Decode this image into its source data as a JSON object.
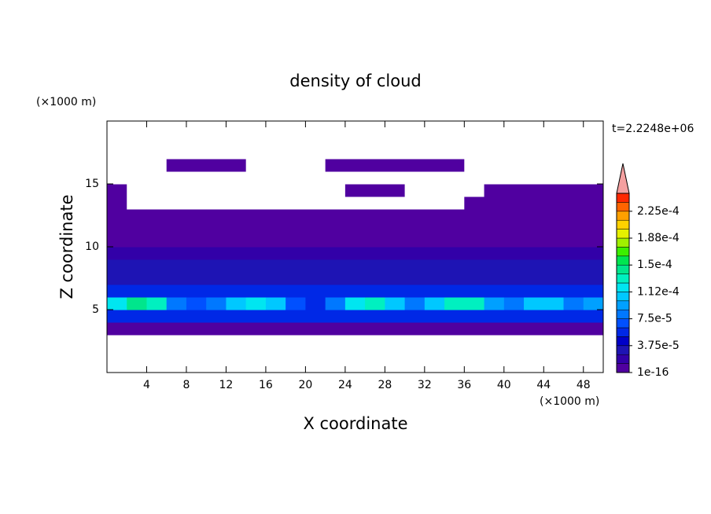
{
  "chart_data": {
    "type": "contour",
    "title": "density of cloud",
    "xlabel": "X coordinate",
    "ylabel": "Z coordinate",
    "x_unit": "(×1000 m)",
    "y_unit": "(×1000 m)",
    "annotation": "t=2.2248e+06",
    "xlim": [
      0,
      50
    ],
    "ylim": [
      0,
      20
    ],
    "xticks": [
      4,
      8,
      12,
      16,
      20,
      24,
      28,
      32,
      36,
      40,
      44,
      48
    ],
    "yticks": [
      5,
      10,
      15
    ],
    "clim": [
      0,
      0.00025
    ],
    "cticks": [
      {
        "value": 1e-16,
        "label": "1e-16"
      },
      {
        "value": 3.75e-05,
        "label": "3.75e-5"
      },
      {
        "value": 7.5e-05,
        "label": "7.5e-5"
      },
      {
        "value": 0.0001125,
        "label": "1.12e-4"
      },
      {
        "value": 0.00015,
        "label": "1.5e-4"
      },
      {
        "value": 0.0001875,
        "label": "1.88e-4"
      },
      {
        "value": 0.000225,
        "label": "2.25e-4"
      }
    ],
    "colors": [
      "#5000a0",
      "#3200a8",
      "#1e14b4",
      "#0000c8",
      "#0028e6",
      "#0050ff",
      "#0078ff",
      "#00a0ff",
      "#00c8ff",
      "#00e6f0",
      "#00f0c0",
      "#00e68c",
      "#00e650",
      "#3cf000",
      "#a0f000",
      "#e6f000",
      "#ffd200",
      "#ffa000",
      "#ff6400",
      "#ff2800"
    ],
    "extend_color": "#f4a0a0",
    "z": [
      [
        0,
        0,
        0,
        0,
        0,
        0,
        0,
        0,
        0,
        0,
        0,
        0,
        0,
        0,
        0,
        0,
        0,
        0,
        0,
        0,
        0,
        0,
        0,
        0,
        0
      ],
      [
        0,
        0,
        0,
        0,
        0,
        0,
        0,
        0,
        0,
        0,
        0,
        0,
        0,
        0,
        0,
        0,
        0,
        0,
        0,
        0,
        0,
        0,
        0,
        0,
        0
      ],
      [
        0,
        0,
        0,
        0,
        0,
        0,
        0,
        0,
        0,
        0,
        0,
        0,
        0,
        0,
        0,
        0,
        0,
        0,
        0,
        0,
        0,
        0,
        0,
        0,
        0
      ],
      [
        5e-06,
        5e-06,
        5e-06,
        5e-06,
        5e-06,
        5e-06,
        5e-06,
        5e-06,
        5e-06,
        5e-06,
        5e-06,
        5e-06,
        5e-06,
        5e-06,
        5e-06,
        5e-06,
        5e-06,
        5e-06,
        5e-06,
        5e-06,
        5e-06,
        5e-06,
        5e-06,
        5e-06,
        5e-06
      ],
      [
        6e-05,
        6e-05,
        6e-05,
        5e-05,
        5e-05,
        5e-05,
        6e-05,
        6e-05,
        5e-05,
        5e-05,
        5e-05,
        5e-05,
        6e-05,
        6e-05,
        5e-05,
        5e-05,
        5e-05,
        6e-05,
        6e-05,
        5e-05,
        5e-05,
        6e-05,
        5e-05,
        5e-05,
        5e-05
      ],
      [
        0.00012,
        0.000145,
        0.00013,
        8e-05,
        7e-05,
        8e-05,
        0.00011,
        0.000115,
        0.0001,
        7e-05,
        6e-05,
        8e-05,
        0.00012,
        0.000125,
        0.0001,
        8e-05,
        0.0001,
        0.00013,
        0.000125,
        9e-05,
        8e-05,
        0.00011,
        0.0001,
        8e-05,
        9e-05
      ],
      [
        6e-05,
        6e-05,
        5e-05,
        5e-05,
        5e-05,
        5e-05,
        6e-05,
        5e-05,
        5e-05,
        5e-05,
        5e-05,
        5e-05,
        6e-05,
        6e-05,
        5e-05,
        5e-05,
        5e-05,
        6e-05,
        6e-05,
        5e-05,
        5e-05,
        5e-05,
        5e-05,
        5e-05,
        6e-05
      ],
      [
        3.5e-05,
        3.5e-05,
        3.5e-05,
        3.5e-05,
        3.5e-05,
        3.5e-05,
        3.5e-05,
        3.5e-05,
        3.5e-05,
        3.5e-05,
        3.5e-05,
        3.5e-05,
        3.5e-05,
        3.5e-05,
        3.5e-05,
        3.5e-05,
        3.5e-05,
        3.5e-05,
        3.5e-05,
        3.5e-05,
        3.5e-05,
        3.5e-05,
        3.5e-05,
        3.5e-05,
        3.5e-05
      ],
      [
        2.5e-05,
        2.5e-05,
        2.5e-05,
        2.5e-05,
        2.5e-05,
        2.5e-05,
        2.5e-05,
        2.5e-05,
        2.5e-05,
        2.5e-05,
        2.5e-05,
        2.5e-05,
        2.5e-05,
        2.5e-05,
        2.5e-05,
        2.5e-05,
        2.5e-05,
        2.5e-05,
        2.5e-05,
        2.5e-05,
        2.5e-05,
        2.5e-05,
        2.5e-05,
        2.5e-05,
        2.5e-05
      ],
      [
        1.8e-05,
        1.8e-05,
        1.8e-05,
        1.8e-05,
        1.8e-05,
        1.8e-05,
        1.8e-05,
        1.8e-05,
        1.8e-05,
        1.8e-05,
        1.8e-05,
        1.8e-05,
        1.8e-05,
        1.8e-05,
        1.8e-05,
        1.8e-05,
        1.8e-05,
        1.8e-05,
        1.8e-05,
        1.8e-05,
        1.8e-05,
        1.8e-05,
        1.8e-05,
        1.8e-05,
        1.8e-05
      ],
      [
        1e-05,
        1e-05,
        1e-05,
        1e-05,
        1e-05,
        1e-05,
        1e-05,
        1e-05,
        1e-05,
        1e-05,
        1e-05,
        1e-05,
        1e-05,
        1e-05,
        1e-05,
        1e-05,
        1e-05,
        1e-05,
        1e-05,
        1e-05,
        1e-05,
        1e-05,
        1e-05,
        1e-05,
        1e-05
      ],
      [
        5e-06,
        5e-06,
        5e-06,
        5e-06,
        5e-06,
        5e-06,
        5e-06,
        5e-06,
        5e-06,
        5e-06,
        5e-06,
        5e-06,
        5e-06,
        5e-06,
        5e-06,
        5e-06,
        5e-06,
        5e-06,
        5e-06,
        5e-06,
        5e-06,
        5e-06,
        5e-06,
        5e-06,
        5e-06
      ],
      [
        3e-06,
        3e-06,
        3e-06,
        3e-06,
        3e-06,
        3e-06,
        3e-06,
        3e-06,
        3e-06,
        3e-06,
        3e-06,
        3e-06,
        3e-06,
        3e-06,
        3e-06,
        3e-06,
        3e-06,
        3e-06,
        3e-06,
        3e-06,
        3e-06,
        3e-06,
        3e-06,
        3e-06,
        3e-06
      ],
      [
        3e-06,
        0,
        0,
        0,
        0,
        0,
        0,
        0,
        0,
        0,
        0,
        0,
        0,
        0,
        0,
        0,
        0,
        0,
        3e-06,
        3e-06,
        3e-06,
        3e-06,
        3e-06,
        3e-06,
        3e-06
      ],
      [
        3e-06,
        0,
        0,
        0,
        0,
        0,
        0,
        0,
        0,
        0,
        0,
        0,
        3e-06,
        3e-06,
        3e-06,
        0,
        0,
        0,
        0,
        3e-06,
        3e-06,
        3e-06,
        3e-06,
        3e-06,
        3e-06
      ],
      [
        0,
        0,
        0,
        0,
        0,
        0,
        0,
        0,
        0,
        0,
        0,
        0,
        0,
        0,
        0,
        0,
        0,
        0,
        0,
        0,
        0,
        0,
        0,
        0,
        0
      ],
      [
        0,
        0,
        0,
        3e-06,
        3e-06,
        3e-06,
        3e-06,
        0,
        0,
        0,
        0,
        3e-06,
        3e-06,
        3e-06,
        3e-06,
        3e-06,
        3e-06,
        3e-06,
        0,
        0,
        0,
        0,
        0,
        0,
        0
      ],
      [
        0,
        0,
        0,
        0,
        0,
        0,
        0,
        0,
        0,
        0,
        0,
        0,
        0,
        0,
        0,
        0,
        0,
        0,
        0,
        0,
        0,
        0,
        0,
        0,
        0
      ],
      [
        0,
        0,
        0,
        0,
        0,
        0,
        0,
        0,
        0,
        0,
        0,
        0,
        0,
        0,
        0,
        0,
        0,
        0,
        0,
        0,
        0,
        0,
        0,
        0,
        0
      ],
      [
        0,
        0,
        0,
        0,
        0,
        0,
        0,
        0,
        0,
        0,
        0,
        0,
        0,
        0,
        0,
        0,
        0,
        0,
        0,
        0,
        0,
        0,
        0,
        0,
        0
      ]
    ]
  }
}
